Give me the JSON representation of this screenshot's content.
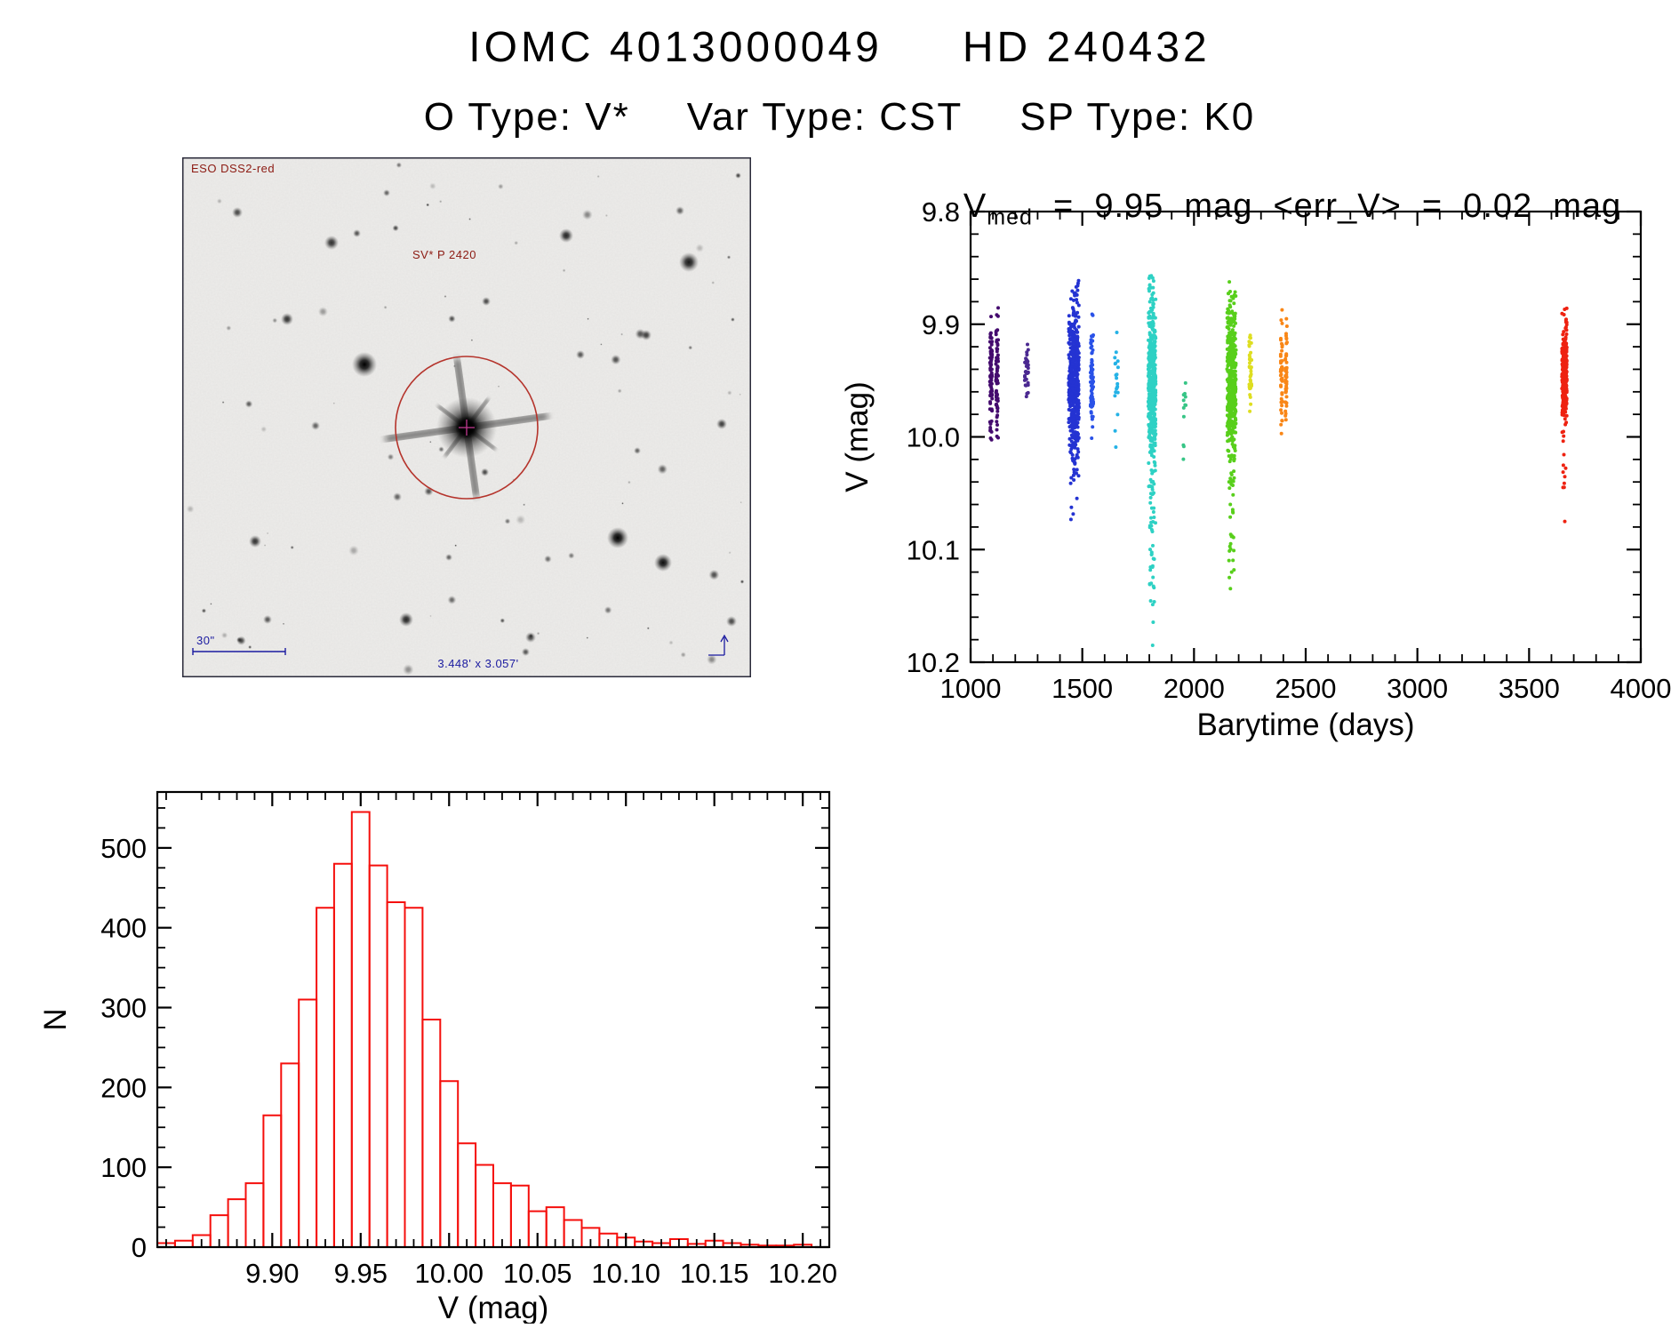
{
  "header": {
    "title_left": "IOMC 4013000049",
    "title_right": "HD 240432",
    "subtitle_items": [
      "O Type: V*",
      "Var Type: CST",
      "SP Type: K0"
    ]
  },
  "finder_chart": {
    "survey_label": "ESO DSS2-red",
    "star_label": "SV* P 2420",
    "scale_label": "30\"",
    "fov_label": "3.448' x 3.057'"
  },
  "chart_data": [
    {
      "id": "lightcurve",
      "type": "scatter",
      "title": {
        "var": "V",
        "sub": "med",
        "rest": "  =  9.95  mag  <err_V>  =  0.02  mag"
      },
      "xlabel": "Barytime (days)",
      "ylabel": "V (mag)",
      "xlim": [
        1000,
        4000
      ],
      "ylim": [
        9.8,
        10.2
      ],
      "y_inverted": true,
      "grid": false,
      "xtick_labels": [
        "1000",
        "1500",
        "2000",
        "2500",
        "3000",
        "3500",
        "4000"
      ],
      "ytick_labels": [
        "9.8",
        "9.9",
        "10.0",
        "10.1",
        "10.2"
      ],
      "x_minor_step": 100,
      "y_minor_step": 0.02,
      "v_median": 9.95,
      "err_v": 0.02,
      "clusters": [
        {
          "name": "epoch-01",
          "color": "#440b6e",
          "barytime": 1105,
          "bt_spread": 34,
          "n": 150,
          "v_center": 9.945,
          "v_sigma": 0.026,
          "v_min": 9.87,
          "v_max": 10.005,
          "tail_n": 0,
          "tail_to": null,
          "bimodal": true,
          "outliers": []
        },
        {
          "name": "epoch-02",
          "color": "#4b2991",
          "barytime": 1250,
          "bt_spread": 16,
          "n": 32,
          "v_center": 9.945,
          "v_sigma": 0.014,
          "v_min": 9.915,
          "v_max": 9.985,
          "tail_n": 0,
          "tail_to": null,
          "bimodal": false,
          "outliers": []
        },
        {
          "name": "epoch-03",
          "color": "#2433d2",
          "barytime": 1462,
          "bt_spread": 46,
          "n": 500,
          "v_center": 9.95,
          "v_sigma": 0.034,
          "v_min": 9.858,
          "v_max": 10.055,
          "tail_n": 14,
          "tail_to": 10.078,
          "bimodal": false,
          "outliers": []
        },
        {
          "name": "epoch-04",
          "color": "#2a52e8",
          "barytime": 1543,
          "bt_spread": 13,
          "n": 70,
          "v_center": 9.95,
          "v_sigma": 0.022,
          "v_min": 9.89,
          "v_max": 10.03,
          "tail_n": 0,
          "tail_to": null,
          "bimodal": false,
          "outliers": []
        },
        {
          "name": "epoch-05",
          "color": "#25b2e6",
          "barytime": 1652,
          "bt_spread": 17,
          "n": 20,
          "v_center": 9.95,
          "v_sigma": 0.028,
          "v_min": 9.89,
          "v_max": 10.012,
          "tail_n": 0,
          "tail_to": null,
          "bimodal": false,
          "outliers": []
        },
        {
          "name": "epoch-06",
          "color": "#2ed1c4",
          "barytime": 1812,
          "bt_spread": 34,
          "n": 430,
          "v_center": 9.95,
          "v_sigma": 0.04,
          "v_min": 9.853,
          "v_max": 10.1,
          "tail_n": 45,
          "tail_to": 10.165,
          "bimodal": false,
          "outliers": [
            [
              1815,
              10.185
            ]
          ]
        },
        {
          "name": "epoch-07",
          "color": "#37c586",
          "barytime": 1958,
          "bt_spread": 12,
          "n": 12,
          "v_center": 9.98,
          "v_sigma": 0.02,
          "v_min": 9.94,
          "v_max": 10.03,
          "tail_n": 0,
          "tail_to": null,
          "bimodal": false,
          "outliers": []
        },
        {
          "name": "epoch-08",
          "color": "#58cf1b",
          "barytime": 2168,
          "bt_spread": 40,
          "n": 430,
          "v_center": 9.95,
          "v_sigma": 0.036,
          "v_min": 9.858,
          "v_max": 10.09,
          "tail_n": 32,
          "tail_to": 10.135,
          "bimodal": false,
          "outliers": []
        },
        {
          "name": "epoch-09",
          "color": "#dede20",
          "barytime": 2252,
          "bt_spread": 12,
          "n": 40,
          "v_center": 9.94,
          "v_sigma": 0.018,
          "v_min": 9.905,
          "v_max": 9.985,
          "tail_n": 0,
          "tail_to": null,
          "bimodal": false,
          "outliers": []
        },
        {
          "name": "epoch-10",
          "color": "#f98616",
          "barytime": 2402,
          "bt_spread": 26,
          "n": 95,
          "v_center": 9.945,
          "v_sigma": 0.024,
          "v_min": 9.88,
          "v_max": 10.005,
          "tail_n": 0,
          "tail_to": null,
          "bimodal": true,
          "outliers": []
        },
        {
          "name": "epoch-11",
          "color": "#ee2211",
          "barytime": 3658,
          "bt_spread": 22,
          "n": 280,
          "v_center": 9.945,
          "v_sigma": 0.02,
          "v_min": 9.87,
          "v_max": 10.01,
          "tail_n": 12,
          "tail_to": 10.05,
          "bimodal": false,
          "outliers": [
            [
              3660,
              10.075
            ]
          ]
        }
      ]
    },
    {
      "id": "histogram",
      "type": "bar",
      "xlabel": "V (mag)",
      "ylabel": "N",
      "color": "#f50f0c",
      "grid": false,
      "xlim": [
        9.835,
        10.215
      ],
      "ylim": [
        0,
        570
      ],
      "xtick_labels": [
        "9.90",
        "9.95",
        "10.00",
        "10.05",
        "10.10",
        "10.15",
        "10.20"
      ],
      "ytick_labels": [
        "0",
        "100",
        "200",
        "300",
        "400",
        "500"
      ],
      "x_minor_step": 0.01,
      "y_minor_step": 25,
      "bin_start": 9.835,
      "bin_width": 0.01,
      "values": [
        5,
        8,
        15,
        40,
        60,
        80,
        165,
        230,
        310,
        425,
        480,
        545,
        478,
        432,
        425,
        285,
        208,
        130,
        103,
        80,
        77,
        45,
        50,
        34,
        24,
        17,
        12,
        7,
        5,
        10,
        4,
        8,
        5,
        3,
        2,
        2,
        3
      ]
    }
  ]
}
